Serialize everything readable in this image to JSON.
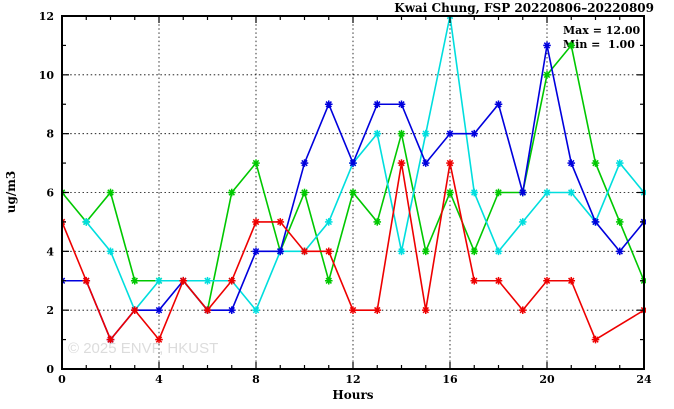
{
  "title": "Kwai Chung, FSP 20220806–20220809",
  "annotation": {
    "max_label": "Max = 12.00",
    "min_label": "Min =  1.00"
  },
  "watermark": "© 2025 ENVF, HKUST",
  "chart_data": {
    "type": "line",
    "title": "Kwai Chung, FSP 20220806–20220809",
    "xlabel": "Hours",
    "ylabel": "ug/m3",
    "xlim": [
      0,
      24
    ],
    "ylim": [
      0,
      12
    ],
    "x_ticks_major": [
      0,
      4,
      8,
      12,
      16,
      20,
      24
    ],
    "x_minor_step": 1,
    "y_ticks_major": [
      0,
      2,
      4,
      6,
      8,
      10,
      12
    ],
    "y_minor_step": 1,
    "grid": "dotted, at major ticks",
    "legend": "none",
    "x": [
      0,
      1,
      2,
      3,
      4,
      5,
      6,
      7,
      8,
      9,
      10,
      11,
      12,
      13,
      14,
      15,
      16,
      17,
      18,
      19,
      20,
      21,
      22,
      23,
      24
    ],
    "series": [
      {
        "name": "series-green",
        "color": "#00c800",
        "values": [
          6,
          5,
          6,
          3,
          3,
          3,
          2,
          6,
          7,
          4,
          6,
          3,
          6,
          5,
          8,
          4,
          6,
          4,
          6,
          6,
          10,
          11,
          7,
          5,
          3
        ]
      },
      {
        "name": "series-cyan",
        "color": "#00dede",
        "values": [
          null,
          5,
          4,
          2,
          3,
          3,
          3,
          3,
          2,
          4,
          4,
          5,
          7,
          8,
          4,
          8,
          12,
          6,
          4,
          5,
          6,
          6,
          5,
          7,
          6
        ]
      },
      {
        "name": "series-blue",
        "color": "#0000dd",
        "values": [
          3,
          3,
          1,
          2,
          2,
          3,
          2,
          2,
          4,
          4,
          7,
          9,
          7,
          9,
          9,
          7,
          8,
          8,
          9,
          6,
          11,
          7,
          5,
          4,
          5
        ]
      },
      {
        "name": "series-red",
        "color": "#ee0000",
        "values": [
          5,
          3,
          1,
          2,
          1,
          3,
          2,
          3,
          5,
          5,
          4,
          4,
          2,
          2,
          7,
          2,
          7,
          3,
          3,
          2,
          3,
          3,
          1,
          null,
          2
        ]
      }
    ],
    "stats": {
      "max": 12.0,
      "min": 1.0
    }
  }
}
